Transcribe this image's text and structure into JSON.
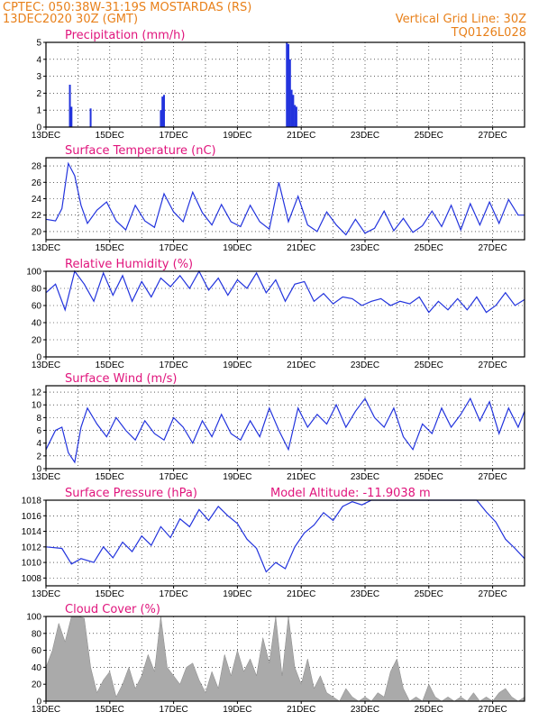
{
  "header": {
    "left_line1": "CPTEC:  050:38W-31:19S  MOSTARDAS (RS)",
    "left_line2": "13DEC2020 30Z (GMT)",
    "right_line1": "Vertical Grid Line: 30Z",
    "right_line2": "TQ0126L028"
  },
  "colors": {
    "line": "#2233dd",
    "bar": "#2233dd",
    "cloud": "#aaaaaa",
    "header": "#e8801a",
    "title": "#e0147c"
  },
  "chart_data": [
    {
      "type": "bar",
      "title": "Precipitation (mm/h)",
      "x_labels": [
        "13DEC",
        "15DEC",
        "17DEC",
        "19DEC",
        "21DEC",
        "23DEC",
        "25DEC",
        "27DEC"
      ],
      "ylim": [
        0,
        5
      ],
      "y_ticks": [
        0,
        1,
        2,
        3,
        4,
        5
      ],
      "bars": [
        {
          "day": 13.75,
          "value": 2.5
        },
        {
          "day": 13.8,
          "value": 1.2
        },
        {
          "day": 14.4,
          "value": 1.1
        },
        {
          "day": 16.6,
          "value": 1.0
        },
        {
          "day": 16.65,
          "value": 1.8
        },
        {
          "day": 16.7,
          "value": 1.9
        },
        {
          "day": 20.55,
          "value": 5.0
        },
        {
          "day": 20.6,
          "value": 4.9
        },
        {
          "day": 20.65,
          "value": 4.0
        },
        {
          "day": 20.7,
          "value": 2.2
        },
        {
          "day": 20.75,
          "value": 1.9
        },
        {
          "day": 20.8,
          "value": 1.3
        },
        {
          "day": 20.85,
          "value": 1.2
        }
      ]
    },
    {
      "type": "line",
      "title": "Surface Temperature (nC)",
      "x_labels": [
        "13DEC",
        "15DEC",
        "17DEC",
        "19DEC",
        "21DEC",
        "23DEC",
        "25DEC",
        "27DEC"
      ],
      "ylim": [
        19,
        29
      ],
      "y_ticks": [
        20,
        22,
        24,
        26,
        28
      ],
      "x": [
        13,
        13.3,
        13.5,
        13.7,
        13.9,
        14.1,
        14.3,
        14.6,
        14.9,
        15.2,
        15.5,
        15.8,
        16.1,
        16.4,
        16.7,
        17.0,
        17.3,
        17.6,
        17.9,
        18.2,
        18.5,
        18.8,
        19.1,
        19.4,
        19.7,
        20.0,
        20.3,
        20.6,
        20.9,
        21.2,
        21.5,
        21.8,
        22.1,
        22.4,
        22.7,
        23.0,
        23.3,
        23.6,
        23.9,
        24.2,
        24.5,
        24.8,
        25.1,
        25.4,
        25.7,
        26.0,
        26.3,
        26.6,
        26.9,
        27.2,
        27.5,
        27.8,
        28.0
      ],
      "y": [
        21.5,
        21.3,
        22.8,
        28.3,
        26.8,
        23.2,
        21.0,
        22.6,
        23.6,
        21.3,
        20.2,
        23.2,
        21.3,
        20.5,
        24.6,
        22.4,
        21.2,
        24.8,
        22.3,
        20.8,
        23.3,
        21.2,
        20.6,
        23.2,
        21.2,
        20.3,
        26.0,
        21.2,
        24.3,
        20.8,
        20.0,
        22.4,
        20.8,
        19.6,
        21.5,
        19.8,
        20.4,
        22.5,
        20.1,
        21.6,
        19.9,
        20.7,
        22.5,
        20.6,
        23.2,
        20.2,
        23.4,
        20.8,
        23.6,
        21.0,
        23.9,
        22.0,
        22.0
      ]
    },
    {
      "type": "line",
      "title": "Relative Humidity (%)",
      "x_labels": [
        "13DEC",
        "15DEC",
        "17DEC",
        "19DEC",
        "21DEC",
        "23DEC",
        "25DEC",
        "27DEC"
      ],
      "ylim": [
        0,
        100
      ],
      "y_ticks": [
        0,
        20,
        40,
        60,
        80,
        100
      ],
      "x": [
        13,
        13.3,
        13.6,
        13.9,
        14.2,
        14.5,
        14.8,
        15.1,
        15.4,
        15.7,
        16.0,
        16.3,
        16.6,
        16.9,
        17.2,
        17.5,
        17.8,
        18.1,
        18.4,
        18.7,
        19.0,
        19.3,
        19.6,
        19.9,
        20.2,
        20.5,
        20.8,
        21.1,
        21.4,
        21.7,
        22.0,
        22.3,
        22.6,
        22.9,
        23.2,
        23.5,
        23.8,
        24.1,
        24.4,
        24.7,
        25.0,
        25.3,
        25.6,
        25.9,
        26.2,
        26.5,
        26.8,
        27.1,
        27.4,
        27.7,
        28.0
      ],
      "y": [
        75,
        85,
        55,
        100,
        85,
        65,
        98,
        72,
        95,
        65,
        88,
        70,
        92,
        82,
        95,
        80,
        100,
        78,
        92,
        72,
        90,
        80,
        98,
        75,
        90,
        65,
        85,
        88,
        65,
        74,
        62,
        70,
        68,
        60,
        65,
        68,
        60,
        65,
        62,
        70,
        52,
        65,
        55,
        68,
        55,
        70,
        52,
        60,
        75,
        60,
        67
      ]
    },
    {
      "type": "line",
      "title": "Surface Wind (m/s)",
      "x_labels": [
        "13DEC",
        "15DEC",
        "17DEC",
        "19DEC",
        "21DEC",
        "23DEC",
        "25DEC",
        "27DEC"
      ],
      "ylim": [
        0,
        13
      ],
      "y_ticks": [
        0,
        2,
        4,
        6,
        8,
        10,
        12
      ],
      "x": [
        13,
        13.3,
        13.5,
        13.7,
        13.9,
        14.1,
        14.3,
        14.6,
        14.9,
        15.2,
        15.5,
        15.8,
        16.1,
        16.4,
        16.7,
        17.0,
        17.3,
        17.6,
        17.9,
        18.2,
        18.5,
        18.8,
        19.1,
        19.4,
        19.7,
        20.0,
        20.3,
        20.6,
        20.9,
        21.2,
        21.5,
        21.8,
        22.1,
        22.4,
        22.7,
        23.0,
        23.3,
        23.6,
        23.9,
        24.2,
        24.5,
        24.8,
        25.1,
        25.4,
        25.7,
        26.0,
        26.3,
        26.6,
        26.9,
        27.2,
        27.5,
        27.8,
        28.0
      ],
      "y": [
        3.0,
        6.0,
        6.5,
        2.5,
        1.0,
        6.5,
        9.5,
        7.0,
        5.0,
        8.0,
        6.0,
        4.5,
        7.5,
        5.5,
        4.5,
        8.0,
        6.5,
        4.0,
        7.5,
        5.0,
        8.5,
        5.5,
        4.5,
        7.5,
        5.0,
        9.5,
        6.0,
        3.0,
        9.5,
        6.5,
        8.5,
        7.0,
        10.0,
        6.5,
        9.0,
        11.0,
        8.0,
        6.5,
        9.5,
        5.0,
        3.0,
        7.0,
        5.5,
        9.5,
        6.5,
        8.5,
        11.0,
        7.5,
        10.5,
        5.5,
        9.5,
        6.5,
        9.0
      ]
    },
    {
      "type": "line",
      "title": "Surface Pressure (hPa)",
      "annotation": "Model Altitude: -11.9038 m",
      "x_labels": [
        "13DEC",
        "15DEC",
        "17DEC",
        "19DEC",
        "21DEC",
        "23DEC",
        "25DEC",
        "27DEC"
      ],
      "ylim": [
        1007,
        1018
      ],
      "y_ticks": [
        1008,
        1010,
        1012,
        1014,
        1016,
        1018
      ],
      "x": [
        13,
        13.5,
        13.8,
        14.1,
        14.5,
        14.8,
        15.1,
        15.4,
        15.7,
        16.0,
        16.3,
        16.6,
        16.9,
        17.2,
        17.5,
        17.8,
        18.1,
        18.4,
        18.7,
        19.0,
        19.3,
        19.6,
        19.9,
        20.2,
        20.5,
        20.8,
        21.1,
        21.4,
        21.7,
        22.0,
        22.3,
        22.6,
        22.9,
        23.2,
        23.5,
        23.8,
        24.1,
        24.4,
        24.7,
        25.0,
        25.3,
        25.6,
        25.9,
        26.2,
        26.5,
        26.8,
        27.1,
        27.4,
        27.7,
        28.0
      ],
      "y": [
        1012.0,
        1011.8,
        1009.8,
        1010.5,
        1010.0,
        1012.0,
        1010.6,
        1012.6,
        1011.4,
        1013.4,
        1012.2,
        1014.6,
        1013.2,
        1015.6,
        1014.6,
        1016.8,
        1015.4,
        1017.2,
        1016.0,
        1015.0,
        1013.0,
        1011.8,
        1008.8,
        1010.0,
        1009.2,
        1012.0,
        1013.8,
        1014.8,
        1016.4,
        1015.4,
        1017.2,
        1017.8,
        1017.4,
        1018.4,
        1018.6,
        1018.6,
        1018.6,
        1018.6,
        1018.6,
        1018.6,
        1018.6,
        1018.6,
        1018.6,
        1018.6,
        1018.0,
        1016.5,
        1015.2,
        1013.0,
        1011.8,
        1010.5
      ]
    },
    {
      "type": "area",
      "title": "Cloud Cover (%)",
      "x_labels": [
        "13DEC",
        "15DEC",
        "17DEC",
        "19DEC",
        "21DEC",
        "23DEC",
        "25DEC",
        "27DEC"
      ],
      "ylim": [
        0,
        100
      ],
      "y_ticks": [
        0,
        20,
        40,
        60,
        80,
        100
      ],
      "x": [
        13,
        13.2,
        13.4,
        13.6,
        13.8,
        14.0,
        14.2,
        14.4,
        14.6,
        14.8,
        15.0,
        15.2,
        15.4,
        15.6,
        15.8,
        16.0,
        16.2,
        16.4,
        16.6,
        16.8,
        17.0,
        17.2,
        17.4,
        17.6,
        17.8,
        18.0,
        18.2,
        18.4,
        18.6,
        18.8,
        19.0,
        19.2,
        19.4,
        19.6,
        19.8,
        20.0,
        20.2,
        20.4,
        20.6,
        20.8,
        21.0,
        21.2,
        21.4,
        21.6,
        21.8,
        22.0,
        22.2,
        22.4,
        22.6,
        22.8,
        23.0,
        23.2,
        23.4,
        23.6,
        23.8,
        24.0,
        24.2,
        24.4,
        24.6,
        24.8,
        25.0,
        25.2,
        25.4,
        25.6,
        25.8,
        26.0,
        26.2,
        26.4,
        26.6,
        26.8,
        27.0,
        27.2,
        27.4,
        27.6,
        27.8,
        28.0
      ],
      "y": [
        40,
        60,
        92,
        70,
        100,
        100,
        98,
        40,
        10,
        25,
        35,
        5,
        20,
        40,
        15,
        30,
        55,
        35,
        100,
        40,
        30,
        20,
        40,
        45,
        25,
        10,
        35,
        15,
        55,
        30,
        60,
        35,
        50,
        30,
        75,
        45,
        100,
        30,
        100,
        40,
        20,
        50,
        15,
        30,
        10,
        5,
        0,
        15,
        5,
        0,
        5,
        0,
        10,
        5,
        35,
        50,
        15,
        0,
        5,
        0,
        20,
        5,
        0,
        5,
        0,
        5,
        0,
        10,
        0,
        5,
        0,
        10,
        15,
        5,
        0,
        5
      ]
    }
  ]
}
